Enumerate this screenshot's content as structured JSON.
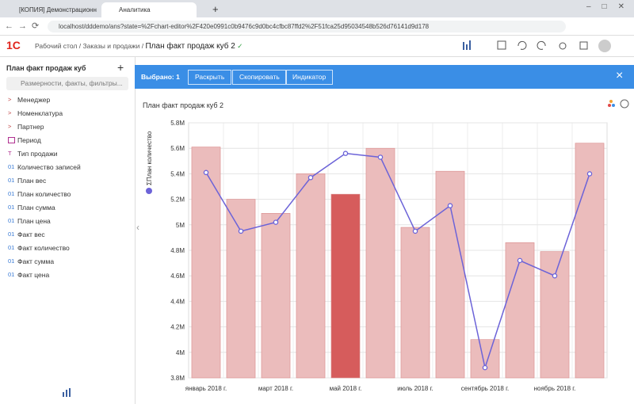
{
  "browser": {
    "tabs": [
      "[КОПИЯ] Демонстрационная б",
      "Аналитика"
    ],
    "new_tab": "+",
    "url": "localhost/dddemo/ans?state=%2Fchart-editor%2F420e0991c0b9476c9d0bc4cfbc87ffd2%2F51fca25d95034548b526d76141d9d178"
  },
  "header": {
    "logo": "1С",
    "separator": "/",
    "breadcrumbs": [
      "Рабочий стол",
      "Заказы и продажи",
      "План факт продаж куб 2"
    ]
  },
  "sidebar": {
    "title": "План факт продаж куб",
    "add": "+",
    "search_placeholder": "Размерности, факты, фильтры...",
    "items": [
      {
        "icon": ">",
        "label": "Менеджер"
      },
      {
        "icon": ">",
        "label": "Номенклатура"
      },
      {
        "icon": ">",
        "label": "Партнер"
      },
      {
        "label": "Период"
      },
      {
        "icon": "T",
        "label": "Тип продажи"
      },
      {
        "icon": "01",
        "label": "Количество записей"
      },
      {
        "icon": "01",
        "label": "План вес"
      },
      {
        "icon": "01",
        "label": "План количество"
      },
      {
        "icon": "01",
        "label": "План сумма"
      },
      {
        "icon": "01",
        "label": "План цена"
      },
      {
        "icon": "01",
        "label": "Факт вес"
      },
      {
        "icon": "01",
        "label": "Факт количество"
      },
      {
        "icon": "01",
        "label": "Факт сумма"
      },
      {
        "icon": "01",
        "label": "Факт цена"
      }
    ]
  },
  "toolbar": {
    "selected": "Выбрано: 1",
    "buttons": [
      "Раскрыть",
      "Скопировать",
      "Индикатор"
    ],
    "close": "×"
  },
  "chart_data": {
    "type": "combo",
    "title": "План факт продаж куб 2",
    "categories": [
      "январь 2018 г.",
      null,
      "март 2018 г.",
      null,
      "май 2018 г.",
      null,
      "июль 2018 г.",
      null,
      "сентябрь 2018 г.",
      null,
      "ноябрь 2018 г.",
      null
    ],
    "series": [
      {
        "type": "bar",
        "color": "#ebbcbc",
        "colors": [
          "#ebbcbc",
          "#ebbcbc",
          "#ebbcbc",
          "#ebbcbc",
          "#d65c5c",
          "#ebbcbc",
          "#ebbcbc",
          "#ebbcbc",
          "#ebbcbc",
          "#ebbcbc",
          "#ebbcbc",
          "#ebbcbc"
        ],
        "values": [
          5610000,
          5200000,
          5090000,
          5400000,
          5240000,
          5600000,
          4980000,
          5420000,
          4100000,
          4860000,
          4790000,
          5640000
        ]
      },
      {
        "type": "line",
        "name": "ΣПлан количество",
        "color": "#6c63d8",
        "values": [
          5410000,
          4950000,
          5020000,
          5370000,
          5560000,
          5530000,
          4950000,
          5150000,
          3880000,
          4720000,
          4600000,
          5400000
        ]
      }
    ],
    "ylim": [
      3800000,
      5800000
    ],
    "yticks": [
      {
        "value": 3800000,
        "label": "3.8M"
      },
      {
        "value": 4000000,
        "label": "4M"
      },
      {
        "value": 4200000,
        "label": "4.2M"
      },
      {
        "value": 4400000,
        "label": "4.4M"
      },
      {
        "value": 4600000,
        "label": "4.6M"
      },
      {
        "value": 4800000,
        "label": "4.8M"
      },
      {
        "value": 5000000,
        "label": "5M"
      },
      {
        "value": 5200000,
        "label": "5.2M"
      },
      {
        "value": 5400000,
        "label": "5.4M"
      },
      {
        "value": 5600000,
        "label": "5.6M"
      },
      {
        "value": 5800000,
        "label": "5.8M"
      }
    ],
    "grid": true
  }
}
